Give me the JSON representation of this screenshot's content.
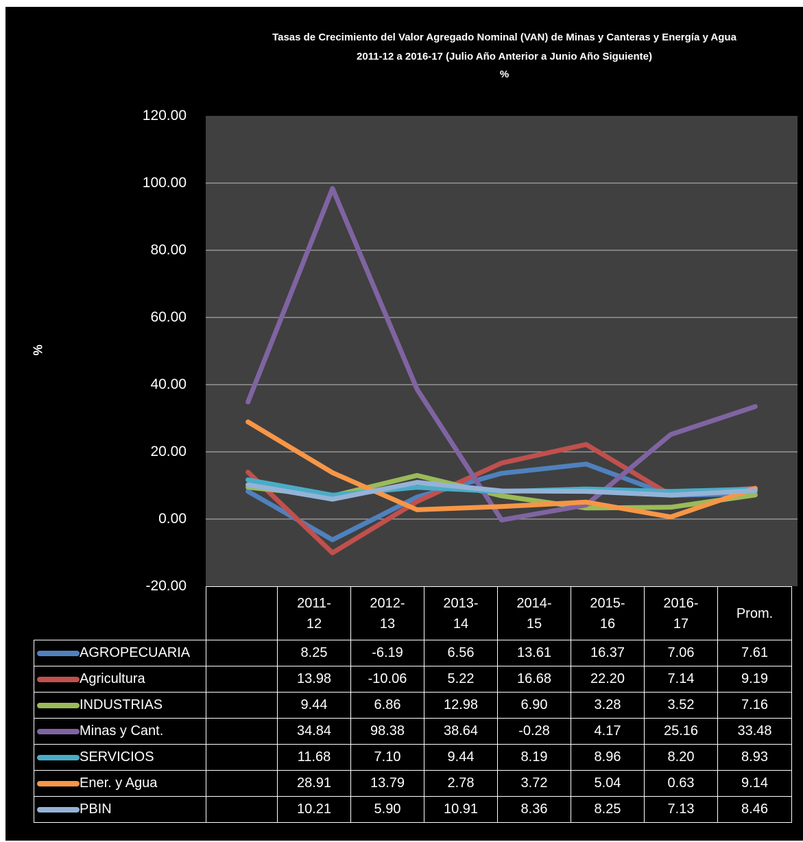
{
  "chart_data": {
    "type": "line",
    "title_lines": [
      "Tasas de Crecimiento del Valor Agregado Nominal (VAN) de Minas y Canteras y Energía y Agua",
      "2011-12 a 2016-17 (Julio Año Anterior a Junio Año Siguiente)",
      "%"
    ],
    "ylabel": "%",
    "ylim": [
      -20,
      120
    ],
    "yticks": [
      "120.00",
      "100.00",
      "80.00",
      "60.00",
      "40.00",
      "20.00",
      "0.00",
      "-20.00"
    ],
    "grid": true,
    "categories": [
      {
        "top": "2011-",
        "bottom": "12"
      },
      {
        "top": "2012-",
        "bottom": "13"
      },
      {
        "top": "2013-",
        "bottom": "14"
      },
      {
        "top": "2014-",
        "bottom": "15"
      },
      {
        "top": "2015-",
        "bottom": "16"
      },
      {
        "top": "2016-",
        "bottom": "17"
      },
      {
        "top": "Prom.",
        "bottom": ""
      }
    ],
    "series": [
      {
        "name": "AGROPECUARIA",
        "color": "#4f81bd",
        "values": [
          8.25,
          -6.19,
          6.56,
          13.61,
          16.37,
          7.06,
          7.61
        ],
        "labels": [
          "8.25",
          "-6.19",
          "6.56",
          "13.61",
          "16.37",
          "7.06",
          "7.61"
        ]
      },
      {
        "name": "Agricultura",
        "color": "#c0504d",
        "values": [
          13.98,
          -10.06,
          5.22,
          16.68,
          22.2,
          7.14,
          9.19
        ],
        "labels": [
          "13.98",
          "-10.06",
          "5.22",
          "16.68",
          "22.20",
          "7.14",
          "9.19"
        ]
      },
      {
        "name": "INDUSTRIAS",
        "color": "#9bbb59",
        "values": [
          9.44,
          6.86,
          12.98,
          6.9,
          3.28,
          3.52,
          7.16
        ],
        "labels": [
          "9.44",
          "6.86",
          "12.98",
          "6.90",
          "3.28",
          "3.52",
          "7.16"
        ]
      },
      {
        "name": "Minas y Cant.",
        "color": "#8064a2",
        "values": [
          34.84,
          98.38,
          38.64,
          -0.28,
          4.17,
          25.16,
          33.48
        ],
        "labels": [
          "34.84",
          "98.38",
          "38.64",
          "-0.28",
          "4.17",
          "25.16",
          "33.48"
        ]
      },
      {
        "name": "SERVICIOS",
        "color": "#4bacc6",
        "values": [
          11.68,
          7.1,
          9.44,
          8.19,
          8.96,
          8.2,
          8.93
        ],
        "labels": [
          "11.68",
          "7.10",
          "9.44",
          "8.19",
          "8.96",
          "8.20",
          "8.93"
        ]
      },
      {
        "name": "Ener. y Agua",
        "color": "#f79646",
        "values": [
          28.91,
          13.79,
          2.78,
          3.72,
          5.04,
          0.63,
          9.14
        ],
        "labels": [
          "28.91",
          "13.79",
          "2.78",
          "3.72",
          "5.04",
          "0.63",
          "9.14"
        ]
      },
      {
        "name": "PBIN",
        "color": "#95b3d7",
        "values": [
          10.21,
          5.9,
          10.91,
          8.36,
          8.25,
          7.13,
          8.46
        ],
        "labels": [
          "10.21",
          "5.90",
          "10.91",
          "8.36",
          "8.25",
          "7.13",
          "8.46"
        ]
      }
    ],
    "colors": {
      "background": "#000000",
      "plot_area": "#404040",
      "grid": "#a6a6a6",
      "text": "#ffffff"
    }
  }
}
